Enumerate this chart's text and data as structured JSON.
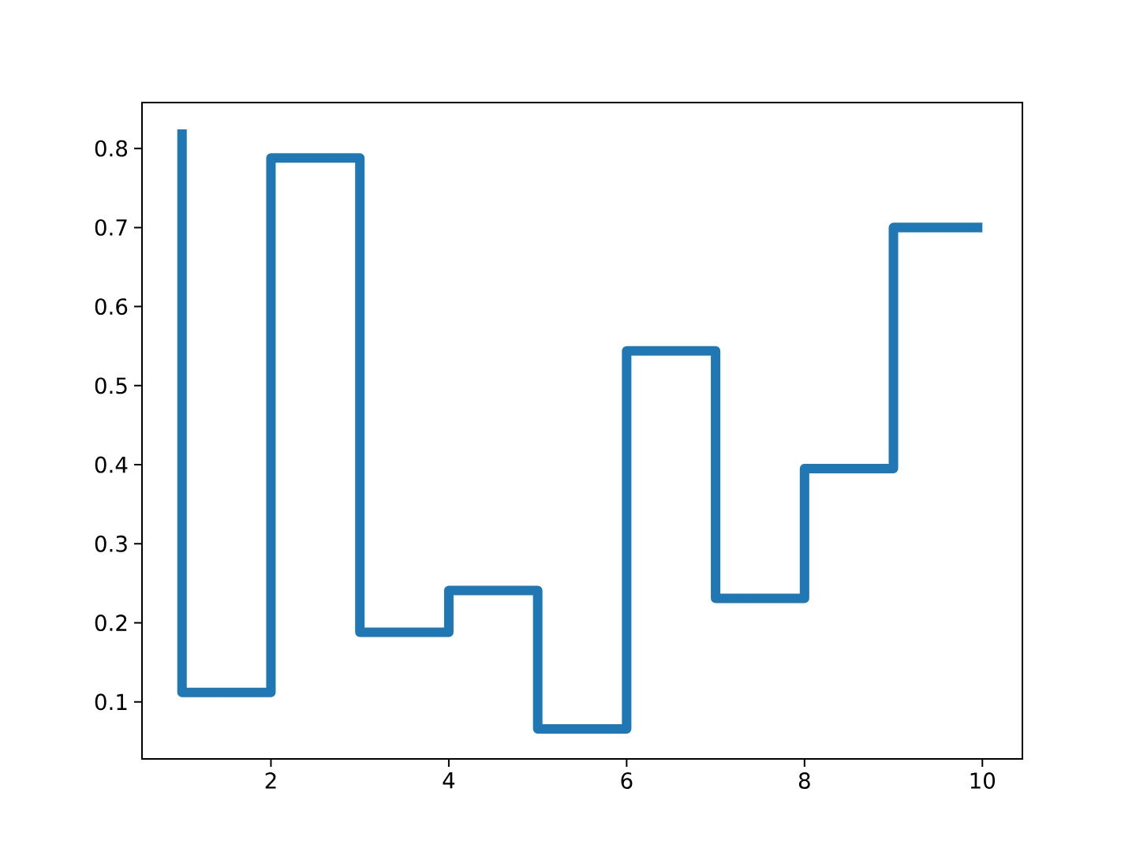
{
  "chart_data": {
    "type": "step",
    "x": [
      1,
      2,
      3,
      4,
      5,
      6,
      7,
      8,
      9,
      10
    ],
    "series": [
      {
        "color": "#1f77b4",
        "values": [
          0.824,
          0.112,
          0.788,
          0.188,
          0.241,
          0.066,
          0.544,
          0.231,
          0.395,
          0.7
        ]
      }
    ],
    "xlim": [
      0.55,
      10.45
    ],
    "ylim": [
      0.028,
      0.858
    ],
    "xticks": [
      2,
      4,
      6,
      8,
      10
    ],
    "yticks": [
      0.1,
      0.2,
      0.3,
      0.4,
      0.5,
      0.6,
      0.7,
      0.8
    ],
    "grid": false,
    "marker": "none",
    "line_style": "solid"
  }
}
